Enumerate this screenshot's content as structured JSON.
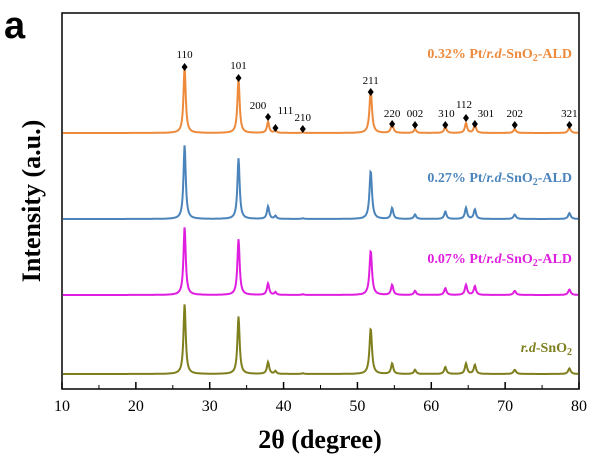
{
  "chart_data": {
    "type": "line",
    "panel_label": "a",
    "xlabel": "2θ (degree)",
    "ylabel": "Intensity (a.u.)",
    "xlim": [
      10,
      80
    ],
    "xticks": [
      "10",
      "20",
      "30",
      "40",
      "50",
      "60",
      "70",
      "80"
    ],
    "grid": false,
    "peaks": [
      {
        "x": 26.6,
        "rel": 1.0,
        "w": 0.18
      },
      {
        "x": 33.9,
        "rel": 0.82,
        "w": 0.18
      },
      {
        "x": 37.9,
        "rel": 0.17,
        "w": 0.18
      },
      {
        "x": 38.9,
        "rel": 0.04,
        "w": 0.16
      },
      {
        "x": 42.6,
        "rel": 0.01,
        "w": 0.16
      },
      {
        "x": 51.8,
        "rel": 0.65,
        "w": 0.2
      },
      {
        "x": 54.7,
        "rel": 0.15,
        "w": 0.18
      },
      {
        "x": 57.8,
        "rel": 0.06,
        "w": 0.18
      },
      {
        "x": 61.9,
        "rel": 0.1,
        "w": 0.18
      },
      {
        "x": 64.7,
        "rel": 0.15,
        "w": 0.18
      },
      {
        "x": 65.9,
        "rel": 0.13,
        "w": 0.18
      },
      {
        "x": 71.3,
        "rel": 0.06,
        "w": 0.2
      },
      {
        "x": 78.7,
        "rel": 0.08,
        "w": 0.2
      }
    ],
    "peak_labels": [
      {
        "label": "110",
        "x": 26.6
      },
      {
        "label": "101",
        "x": 33.9
      },
      {
        "label": "200",
        "x": 37.9
      },
      {
        "label": "111",
        "x": 38.9
      },
      {
        "label": "210",
        "x": 42.6
      },
      {
        "label": "211",
        "x": 51.8
      },
      {
        "label": "220",
        "x": 54.7
      },
      {
        "label": "002",
        "x": 57.8
      },
      {
        "label": "310",
        "x": 61.9
      },
      {
        "label": "112",
        "x": 64.7
      },
      {
        "label": "301",
        "x": 65.9
      },
      {
        "label": "202",
        "x": 71.3
      },
      {
        "label": "321",
        "x": 78.7
      }
    ],
    "series": [
      {
        "name": "0.32% Pt/r.d-SnO2-ALD",
        "label_parts": [
          "0.32% Pt/",
          "r.d",
          "-SnO",
          "2",
          "-ALD"
        ],
        "color": "#ED8A3C",
        "scale": 1.0
      },
      {
        "name": "0.27% Pt/r.d-SnO2-ALD",
        "label_parts": [
          "0.27% Pt/",
          "r.d",
          "-SnO",
          "2",
          "-ALD"
        ],
        "color": "#4A84BB",
        "scale": 1.0
      },
      {
        "name": "0.07% Pt/r.d-SnO2-ALD",
        "label_parts": [
          "0.07% Pt/",
          "r.d",
          "-SnO",
          "2",
          "-ALD"
        ],
        "color": "#E01EE0",
        "scale": 1.0
      },
      {
        "name": "r.d-SnO2",
        "label_parts": [
          "",
          "r.d",
          "-SnO",
          "2",
          ""
        ],
        "color": "#7F7F1E",
        "scale": 1.0
      }
    ]
  }
}
